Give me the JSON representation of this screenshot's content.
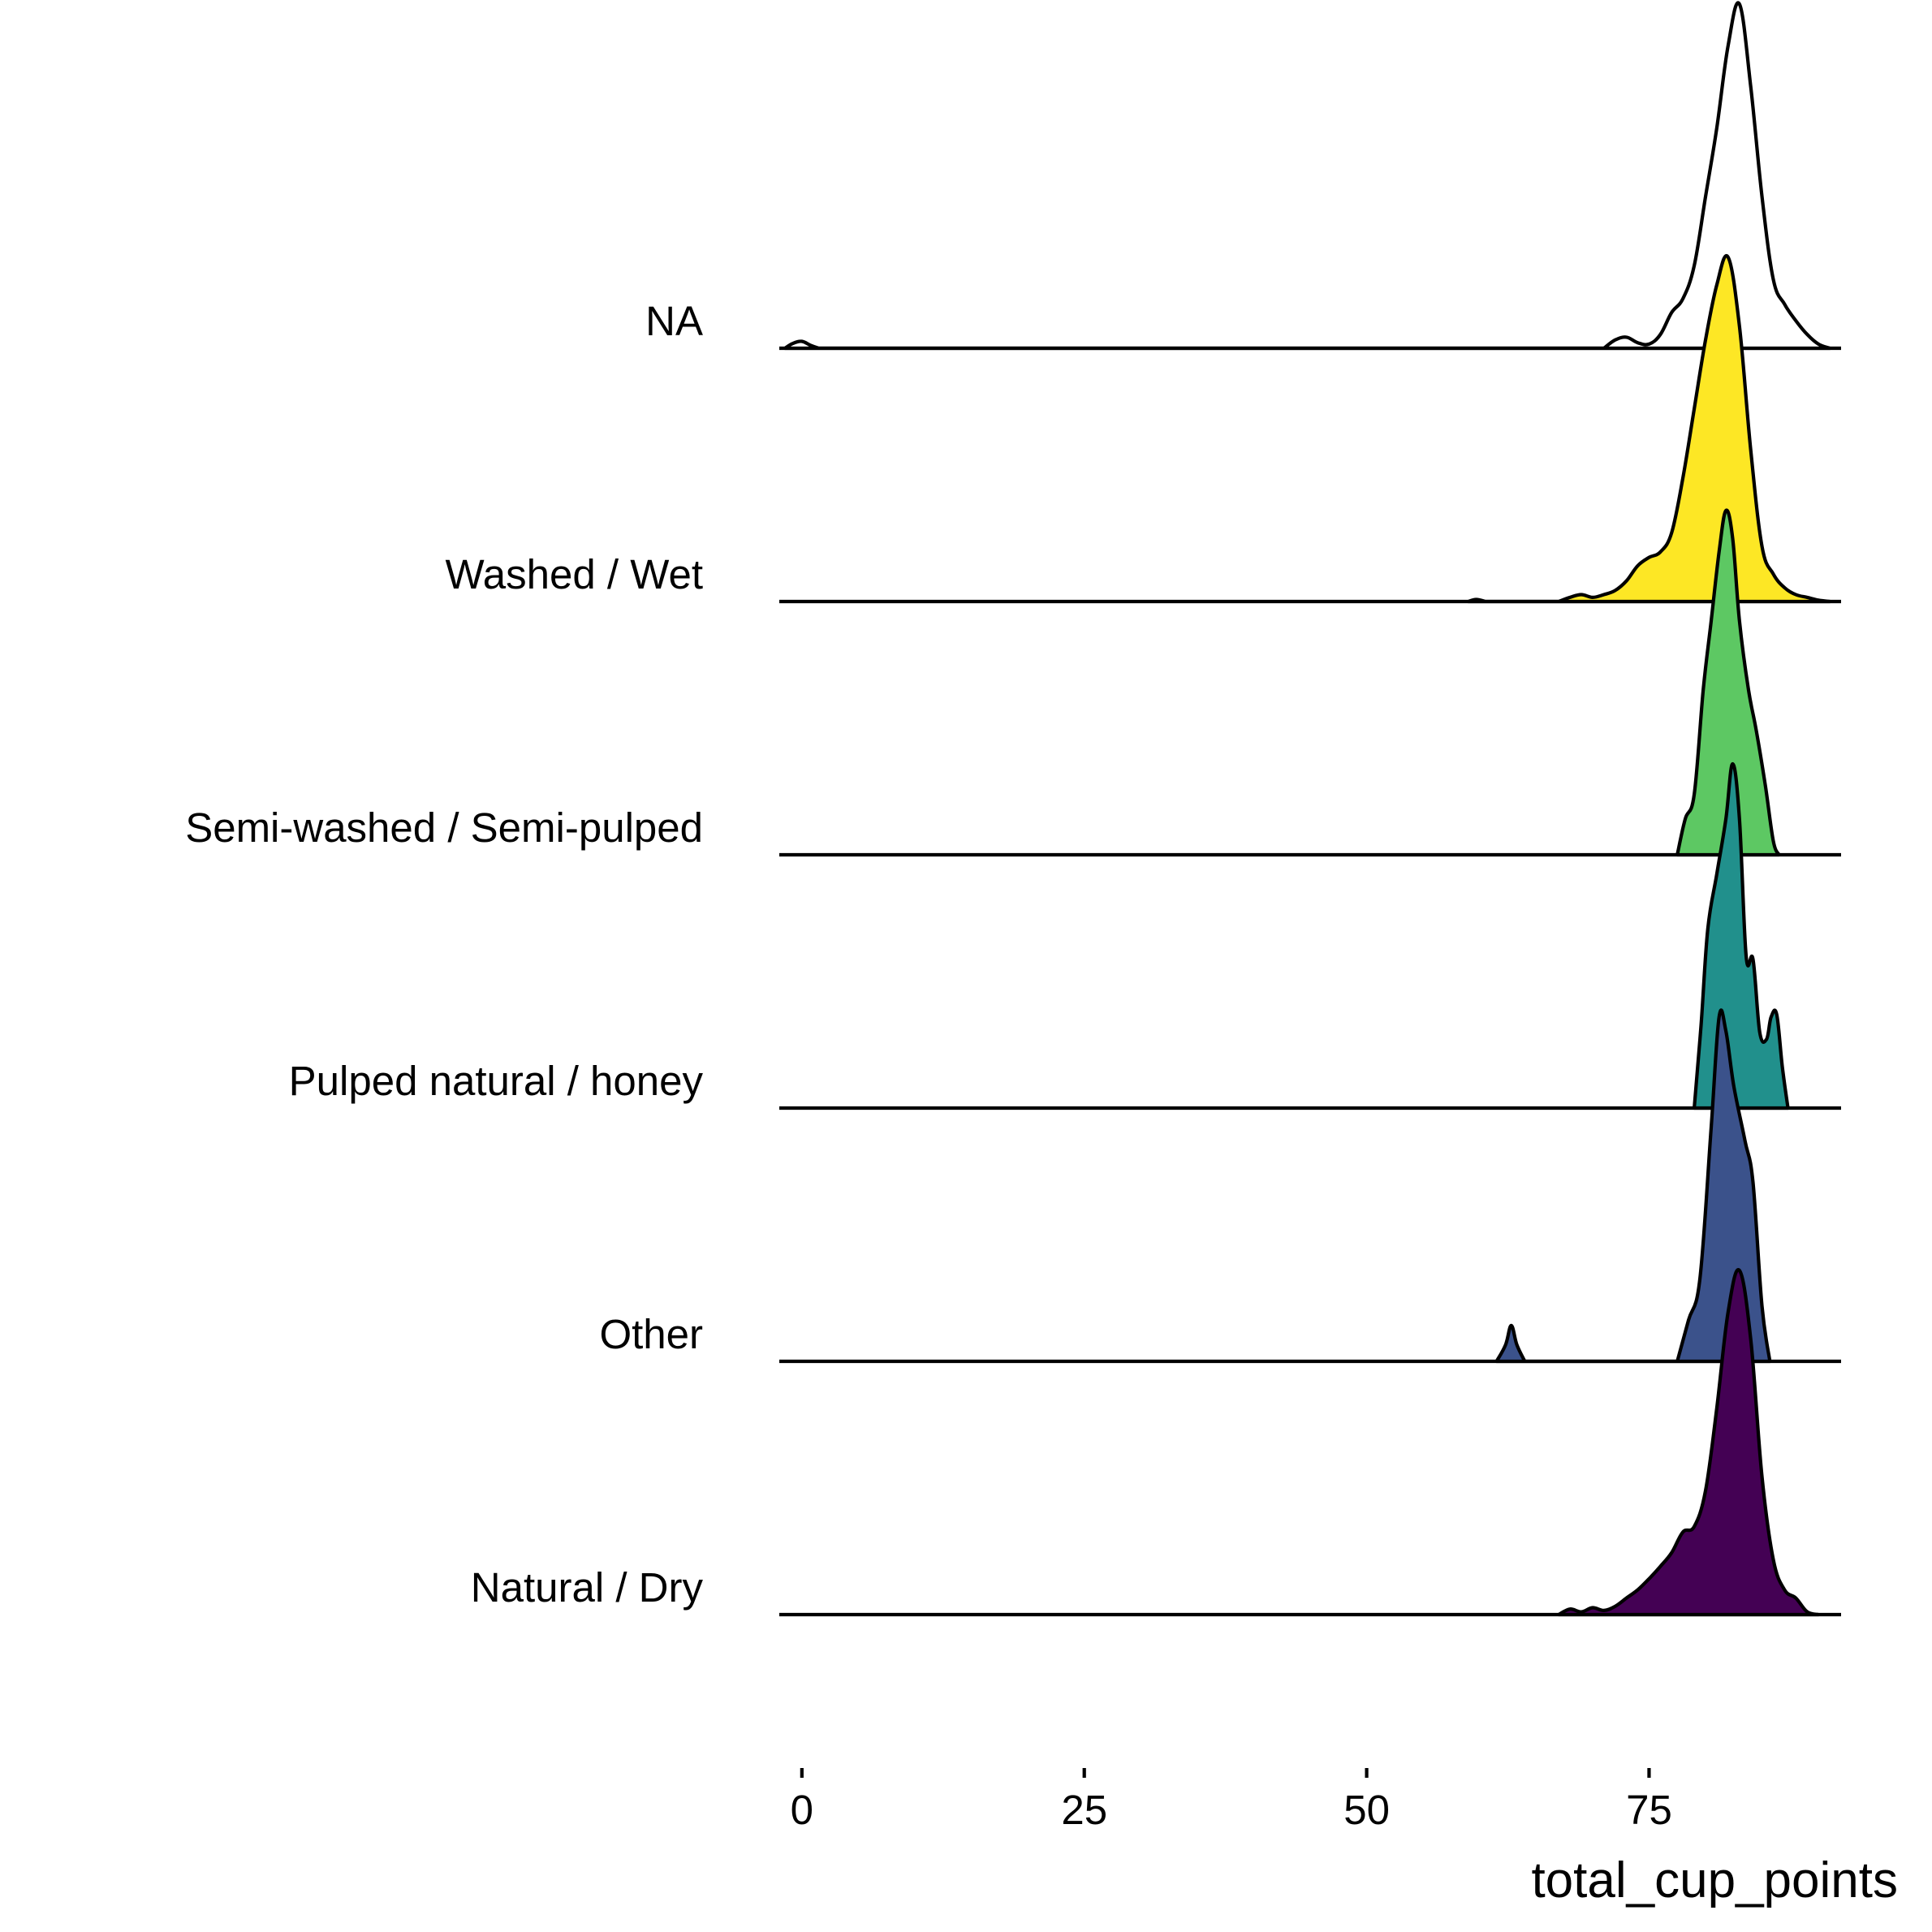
{
  "chart_data": {
    "type": "ridgeline",
    "xlabel": "total_cup_points",
    "ylabel": "",
    "x_ticks": [
      0,
      25,
      50,
      75
    ],
    "xlim": [
      -2,
      92
    ],
    "series": [
      {
        "name": "Natural / Dry",
        "color": "#440154",
        "density_points": [
          [
            67,
            0
          ],
          [
            68,
            0.4
          ],
          [
            69,
            0.2
          ],
          [
            70,
            0.5
          ],
          [
            71,
            0.3
          ],
          [
            72,
            0.6
          ],
          [
            73,
            1.2
          ],
          [
            74,
            1.8
          ],
          [
            75,
            2.6
          ],
          [
            76,
            3.5
          ],
          [
            77,
            4.5
          ],
          [
            78,
            6
          ],
          [
            79,
            6.4
          ],
          [
            80,
            9
          ],
          [
            81,
            15
          ],
          [
            82,
            22
          ],
          [
            83,
            25
          ],
          [
            84,
            20
          ],
          [
            85,
            10
          ],
          [
            86,
            4
          ],
          [
            87,
            1.8
          ],
          [
            88,
            1.2
          ],
          [
            89,
            0.2
          ],
          [
            90,
            0
          ]
        ]
      },
      {
        "name": "Other",
        "color": "#3b528b",
        "density_points": [
          [
            61.5,
            0
          ],
          [
            62.3,
            1.2
          ],
          [
            62.8,
            2.6
          ],
          [
            63.3,
            1.2
          ],
          [
            64,
            0
          ],
          [
            77.5,
            0
          ],
          [
            78.5,
            3
          ],
          [
            79.5,
            6
          ],
          [
            80.5,
            17
          ],
          [
            81.2,
            25
          ],
          [
            81.8,
            24
          ],
          [
            82.5,
            20
          ],
          [
            83.5,
            16
          ],
          [
            84.2,
            13
          ],
          [
            85,
            4
          ],
          [
            85.7,
            0
          ]
        ]
      },
      {
        "name": "Pulped natural / honey",
        "color": "#21908c",
        "density_points": [
          [
            79,
            0
          ],
          [
            79.6,
            6
          ],
          [
            80.2,
            13
          ],
          [
            81,
            17
          ],
          [
            81.8,
            21
          ],
          [
            82.4,
            25
          ],
          [
            83,
            21
          ],
          [
            83.6,
            11
          ],
          [
            84.2,
            10.8
          ],
          [
            84.8,
            5.5
          ],
          [
            85.4,
            5
          ],
          [
            85.8,
            6.6
          ],
          [
            86.3,
            6.8
          ],
          [
            86.8,
            3
          ],
          [
            87.3,
            0
          ]
        ]
      },
      {
        "name": "Semi-washed / Semi-pulped",
        "color": "#5dc863",
        "density_points": [
          [
            77.5,
            0
          ],
          [
            78.2,
            2.6
          ],
          [
            79,
            4.4
          ],
          [
            79.8,
            12
          ],
          [
            80.5,
            17
          ],
          [
            81.2,
            22
          ],
          [
            81.8,
            25
          ],
          [
            82.4,
            23
          ],
          [
            83,
            17
          ],
          [
            83.8,
            12
          ],
          [
            84.5,
            9
          ],
          [
            85.3,
            5
          ],
          [
            86,
            1
          ],
          [
            86.5,
            0
          ]
        ]
      },
      {
        "name": "Washed / Wet",
        "color": "#fde725",
        "density_points": [
          [
            59,
            0
          ],
          [
            59.7,
            0.15
          ],
          [
            60.5,
            0
          ],
          [
            67,
            0
          ],
          [
            68,
            0.3
          ],
          [
            69,
            0.5
          ],
          [
            70,
            0.3
          ],
          [
            71,
            0.5
          ],
          [
            72,
            0.8
          ],
          [
            73,
            1.5
          ],
          [
            74,
            2.6
          ],
          [
            75,
            3.2
          ],
          [
            76,
            3.6
          ],
          [
            77,
            5
          ],
          [
            78,
            9
          ],
          [
            79,
            14
          ],
          [
            80,
            19
          ],
          [
            81,
            23
          ],
          [
            82,
            25
          ],
          [
            83,
            20
          ],
          [
            84,
            11
          ],
          [
            85,
            4
          ],
          [
            86,
            2
          ],
          [
            87,
            1
          ],
          [
            88,
            0.5
          ],
          [
            89,
            0.3
          ],
          [
            90,
            0.1
          ],
          [
            91,
            0
          ]
        ]
      },
      {
        "name": "NA",
        "color": "#ffffff",
        "density_points": [
          [
            -1.5,
            0
          ],
          [
            -0.8,
            0.35
          ],
          [
            0,
            0.5
          ],
          [
            0.8,
            0.2
          ],
          [
            1.5,
            0
          ],
          [
            71,
            0
          ],
          [
            72,
            0.6
          ],
          [
            73,
            0.8
          ],
          [
            74,
            0.4
          ],
          [
            75,
            0.3
          ],
          [
            76,
            1
          ],
          [
            77,
            2.6
          ],
          [
            78,
            3.6
          ],
          [
            79,
            6
          ],
          [
            80,
            11
          ],
          [
            81,
            16
          ],
          [
            82,
            22
          ],
          [
            83,
            25
          ],
          [
            84,
            19
          ],
          [
            85,
            11
          ],
          [
            86,
            5
          ],
          [
            87,
            3.2
          ],
          [
            88,
            2
          ],
          [
            89,
            1
          ],
          [
            90,
            0.3
          ],
          [
            91,
            0
          ]
        ]
      }
    ]
  }
}
